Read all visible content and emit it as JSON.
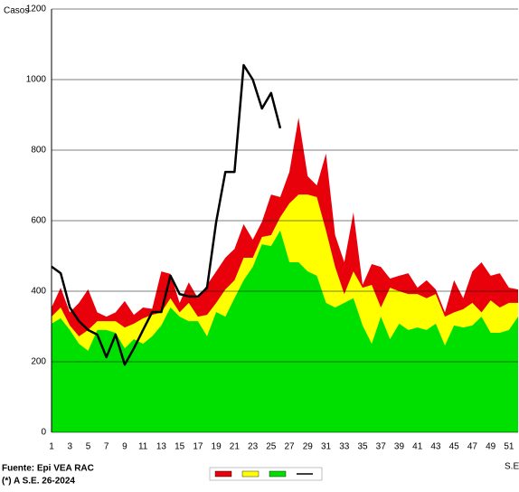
{
  "chart_data": {
    "type": "area-channel",
    "y_label": "Casos",
    "x_label": "S.E",
    "footer": [
      "Fuente: Epi VEA RAC",
      "(*) A S.E. 26-2024"
    ],
    "categories": [
      1,
      null,
      3,
      null,
      5,
      null,
      7,
      null,
      9,
      null,
      11,
      null,
      13,
      null,
      15,
      null,
      17,
      null,
      19,
      null,
      21,
      null,
      23,
      null,
      25,
      null,
      27,
      null,
      29,
      null,
      31,
      null,
      33,
      null,
      35,
      null,
      37,
      null,
      39,
      null,
      41,
      null,
      43,
      null,
      45,
      null,
      47,
      null,
      49,
      null,
      51,
      null
    ],
    "ylim": [
      0,
      1200
    ],
    "yticks": [
      0,
      200,
      400,
      600,
      800,
      1000,
      1200
    ],
    "grid": true,
    "series": [
      {
        "color": "#e8000b",
        "kind": "area",
        "values": [
          354,
          410,
          340,
          367,
          405,
          340,
          328,
          340,
          372,
          333,
          354,
          350,
          456,
          449,
          367,
          425,
          380,
          418,
          456,
          495,
          520,
          590,
          546,
          597,
          674,
          667,
          738,
          892,
          726,
          700,
          790,
          559,
          482,
          623,
          418,
          477,
          469,
          436,
          444,
          451,
          410,
          431,
          405,
          340,
          431,
          380,
          456,
          482,
          444,
          451,
          410,
          405
        ]
      },
      {
        "color": "#ffff00",
        "kind": "area",
        "values": [
          328,
          354,
          303,
          272,
          290,
          315,
          315,
          315,
          297,
          308,
          323,
          333,
          340,
          380,
          340,
          367,
          328,
          333,
          367,
          405,
          431,
          495,
          495,
          554,
          559,
          610,
          649,
          674,
          674,
          667,
          572,
          469,
          392,
          456,
          410,
          418,
          354,
          410,
          400,
          392,
          392,
          380,
          392,
          328,
          340,
          349,
          367,
          340,
          374,
          354,
          367,
          367
        ]
      },
      {
        "color": "#00e000",
        "kind": "area",
        "values": [
          308,
          323,
          290,
          251,
          231,
          290,
          290,
          282,
          238,
          264,
          251,
          272,
          303,
          354,
          328,
          315,
          315,
          272,
          341,
          328,
          380,
          431,
          469,
          533,
          528,
          572,
          482,
          482,
          456,
          444,
          367,
          354,
          367,
          380,
          303,
          251,
          328,
          264,
          308,
          290,
          297,
          290,
          308,
          246,
          303,
          297,
          303,
          328,
          282,
          282,
          290,
          328
        ]
      },
      {
        "color": "#000000",
        "kind": "line",
        "values": [
          470,
          451,
          354,
          315,
          290,
          277,
          213,
          277,
          192,
          238,
          290,
          341,
          341,
          444,
          392,
          385,
          385,
          410,
          597,
          738,
          738,
          1041,
          1000,
          918,
          962,
          862,
          null,
          null,
          null,
          null,
          null,
          null,
          null,
          null,
          null,
          null,
          null,
          null,
          null,
          null,
          null,
          null,
          null,
          null,
          null,
          null,
          null,
          null,
          null,
          null,
          null,
          null
        ]
      }
    ]
  }
}
